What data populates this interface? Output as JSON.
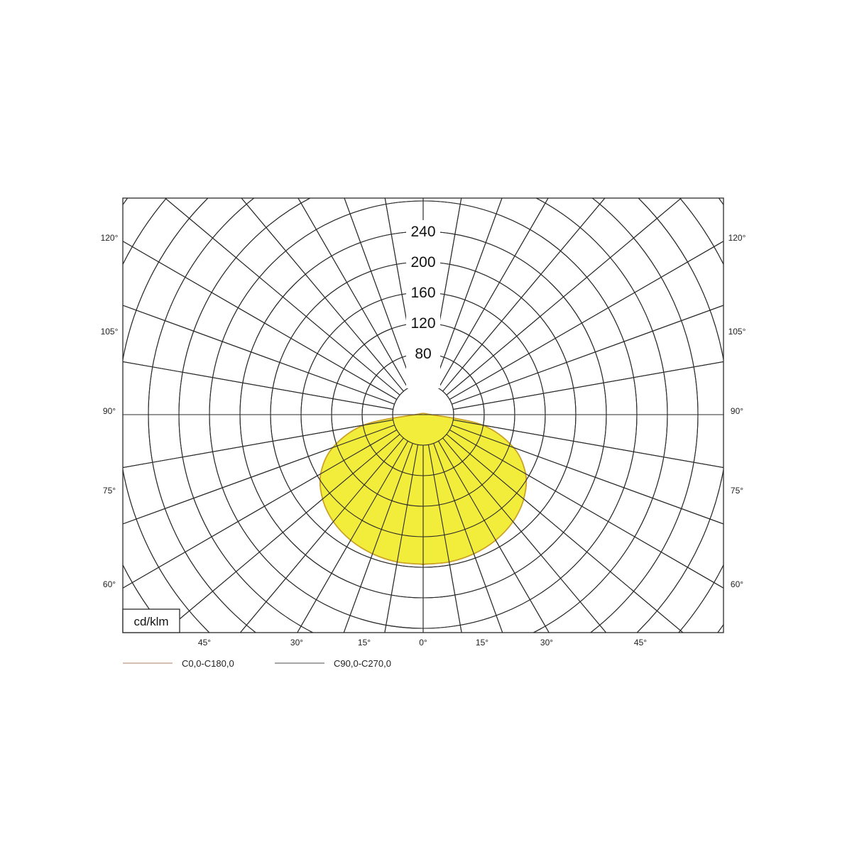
{
  "chart_data": {
    "type": "polar",
    "unit_label": "cd/klm",
    "radial_ticks": [
      40,
      80,
      120,
      160,
      200,
      240
    ],
    "radial_tick_labels": [
      "80",
      "120",
      "160",
      "200",
      "240"
    ],
    "radial_max": 280,
    "angle_labels_side": [
      "120°",
      "105°",
      "90°",
      "75°",
      "60°"
    ],
    "angle_labels_bottom": [
      "45°",
      "30°",
      "15°",
      "0°",
      "15°",
      "30°",
      "45°"
    ],
    "fill_color": "#f2ec3b",
    "outline_color": "#c9a227",
    "series": [
      {
        "name": "C0,0-C180,0",
        "color": "#c8a898",
        "angles_deg": [
          0,
          10,
          20,
          30,
          40,
          50,
          60,
          70,
          80,
          90
        ],
        "values": [
          196,
          196,
          194,
          190,
          183,
          172,
          155,
          126,
          79,
          10
        ]
      },
      {
        "name": "C90,0-C270,0",
        "color": "#888888",
        "angles_deg": [
          0,
          10,
          20,
          30,
          40,
          50,
          60,
          70,
          80,
          90
        ],
        "values": [
          196,
          196,
          194,
          190,
          183,
          172,
          155,
          126,
          79,
          10
        ]
      }
    ]
  }
}
